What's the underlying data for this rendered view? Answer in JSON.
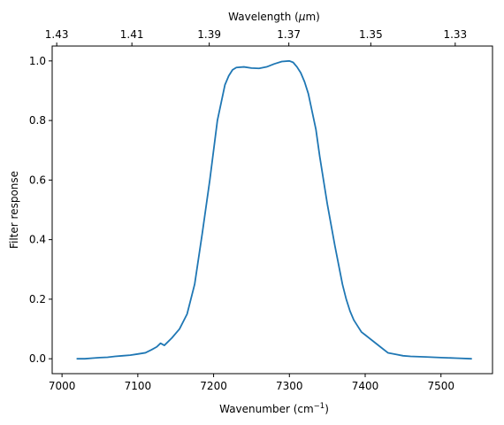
{
  "chart_data": {
    "type": "line",
    "title": "",
    "xlabel": "Wavenumber (cm",
    "xlabel_sup": "−1",
    "xlabel_close": ")",
    "ylabel": "Filter response",
    "top_xlabel_pre": "Wavelength (",
    "top_xlabel_mu": "μ",
    "top_xlabel_post": "m)",
    "xlim": [
      6987,
      7568
    ],
    "ylim": [
      -0.05,
      1.05
    ],
    "xticks": [
      7000,
      7100,
      7200,
      7300,
      7400,
      7500
    ],
    "xtick_labels": [
      "7000",
      "7100",
      "7200",
      "7300",
      "7400",
      "7500"
    ],
    "yticks": [
      0.0,
      0.2,
      0.4,
      0.6,
      0.8,
      1.0
    ],
    "ytick_labels": [
      "0.0",
      "0.2",
      "0.4",
      "0.6",
      "0.8",
      "1.0"
    ],
    "top_xticks": [
      1.43,
      1.41,
      1.39,
      1.37,
      1.35,
      1.33
    ],
    "top_xtick_labels": [
      "1.43",
      "1.41",
      "1.39",
      "1.37",
      "1.35",
      "1.33"
    ],
    "grid": false,
    "series": [
      {
        "color": "#1f77b4",
        "x": [
          7020,
          7030,
          7040,
          7050,
          7060,
          7070,
          7080,
          7090,
          7100,
          7110,
          7118,
          7125,
          7130,
          7135,
          7145,
          7155,
          7165,
          7175,
          7185,
          7195,
          7205,
          7210,
          7215,
          7220,
          7225,
          7230,
          7240,
          7250,
          7260,
          7270,
          7280,
          7290,
          7300,
          7305,
          7310,
          7315,
          7320,
          7325,
          7330,
          7335,
          7340,
          7350,
          7360,
          7370,
          7375,
          7380,
          7385,
          7390,
          7395,
          7400,
          7410,
          7420,
          7430,
          7440,
          7450,
          7460,
          7480,
          7500,
          7520,
          7540
        ],
        "y": [
          0.0,
          0.0,
          0.002,
          0.004,
          0.005,
          0.008,
          0.01,
          0.012,
          0.016,
          0.02,
          0.03,
          0.04,
          0.052,
          0.045,
          0.07,
          0.1,
          0.15,
          0.25,
          0.42,
          0.6,
          0.8,
          0.86,
          0.92,
          0.95,
          0.97,
          0.978,
          0.98,
          0.976,
          0.975,
          0.98,
          0.99,
          0.998,
          1.0,
          0.995,
          0.98,
          0.96,
          0.93,
          0.89,
          0.83,
          0.77,
          0.68,
          0.52,
          0.38,
          0.25,
          0.2,
          0.16,
          0.13,
          0.11,
          0.09,
          0.08,
          0.06,
          0.04,
          0.02,
          0.015,
          0.01,
          0.008,
          0.006,
          0.004,
          0.002,
          0.0
        ]
      }
    ]
  }
}
